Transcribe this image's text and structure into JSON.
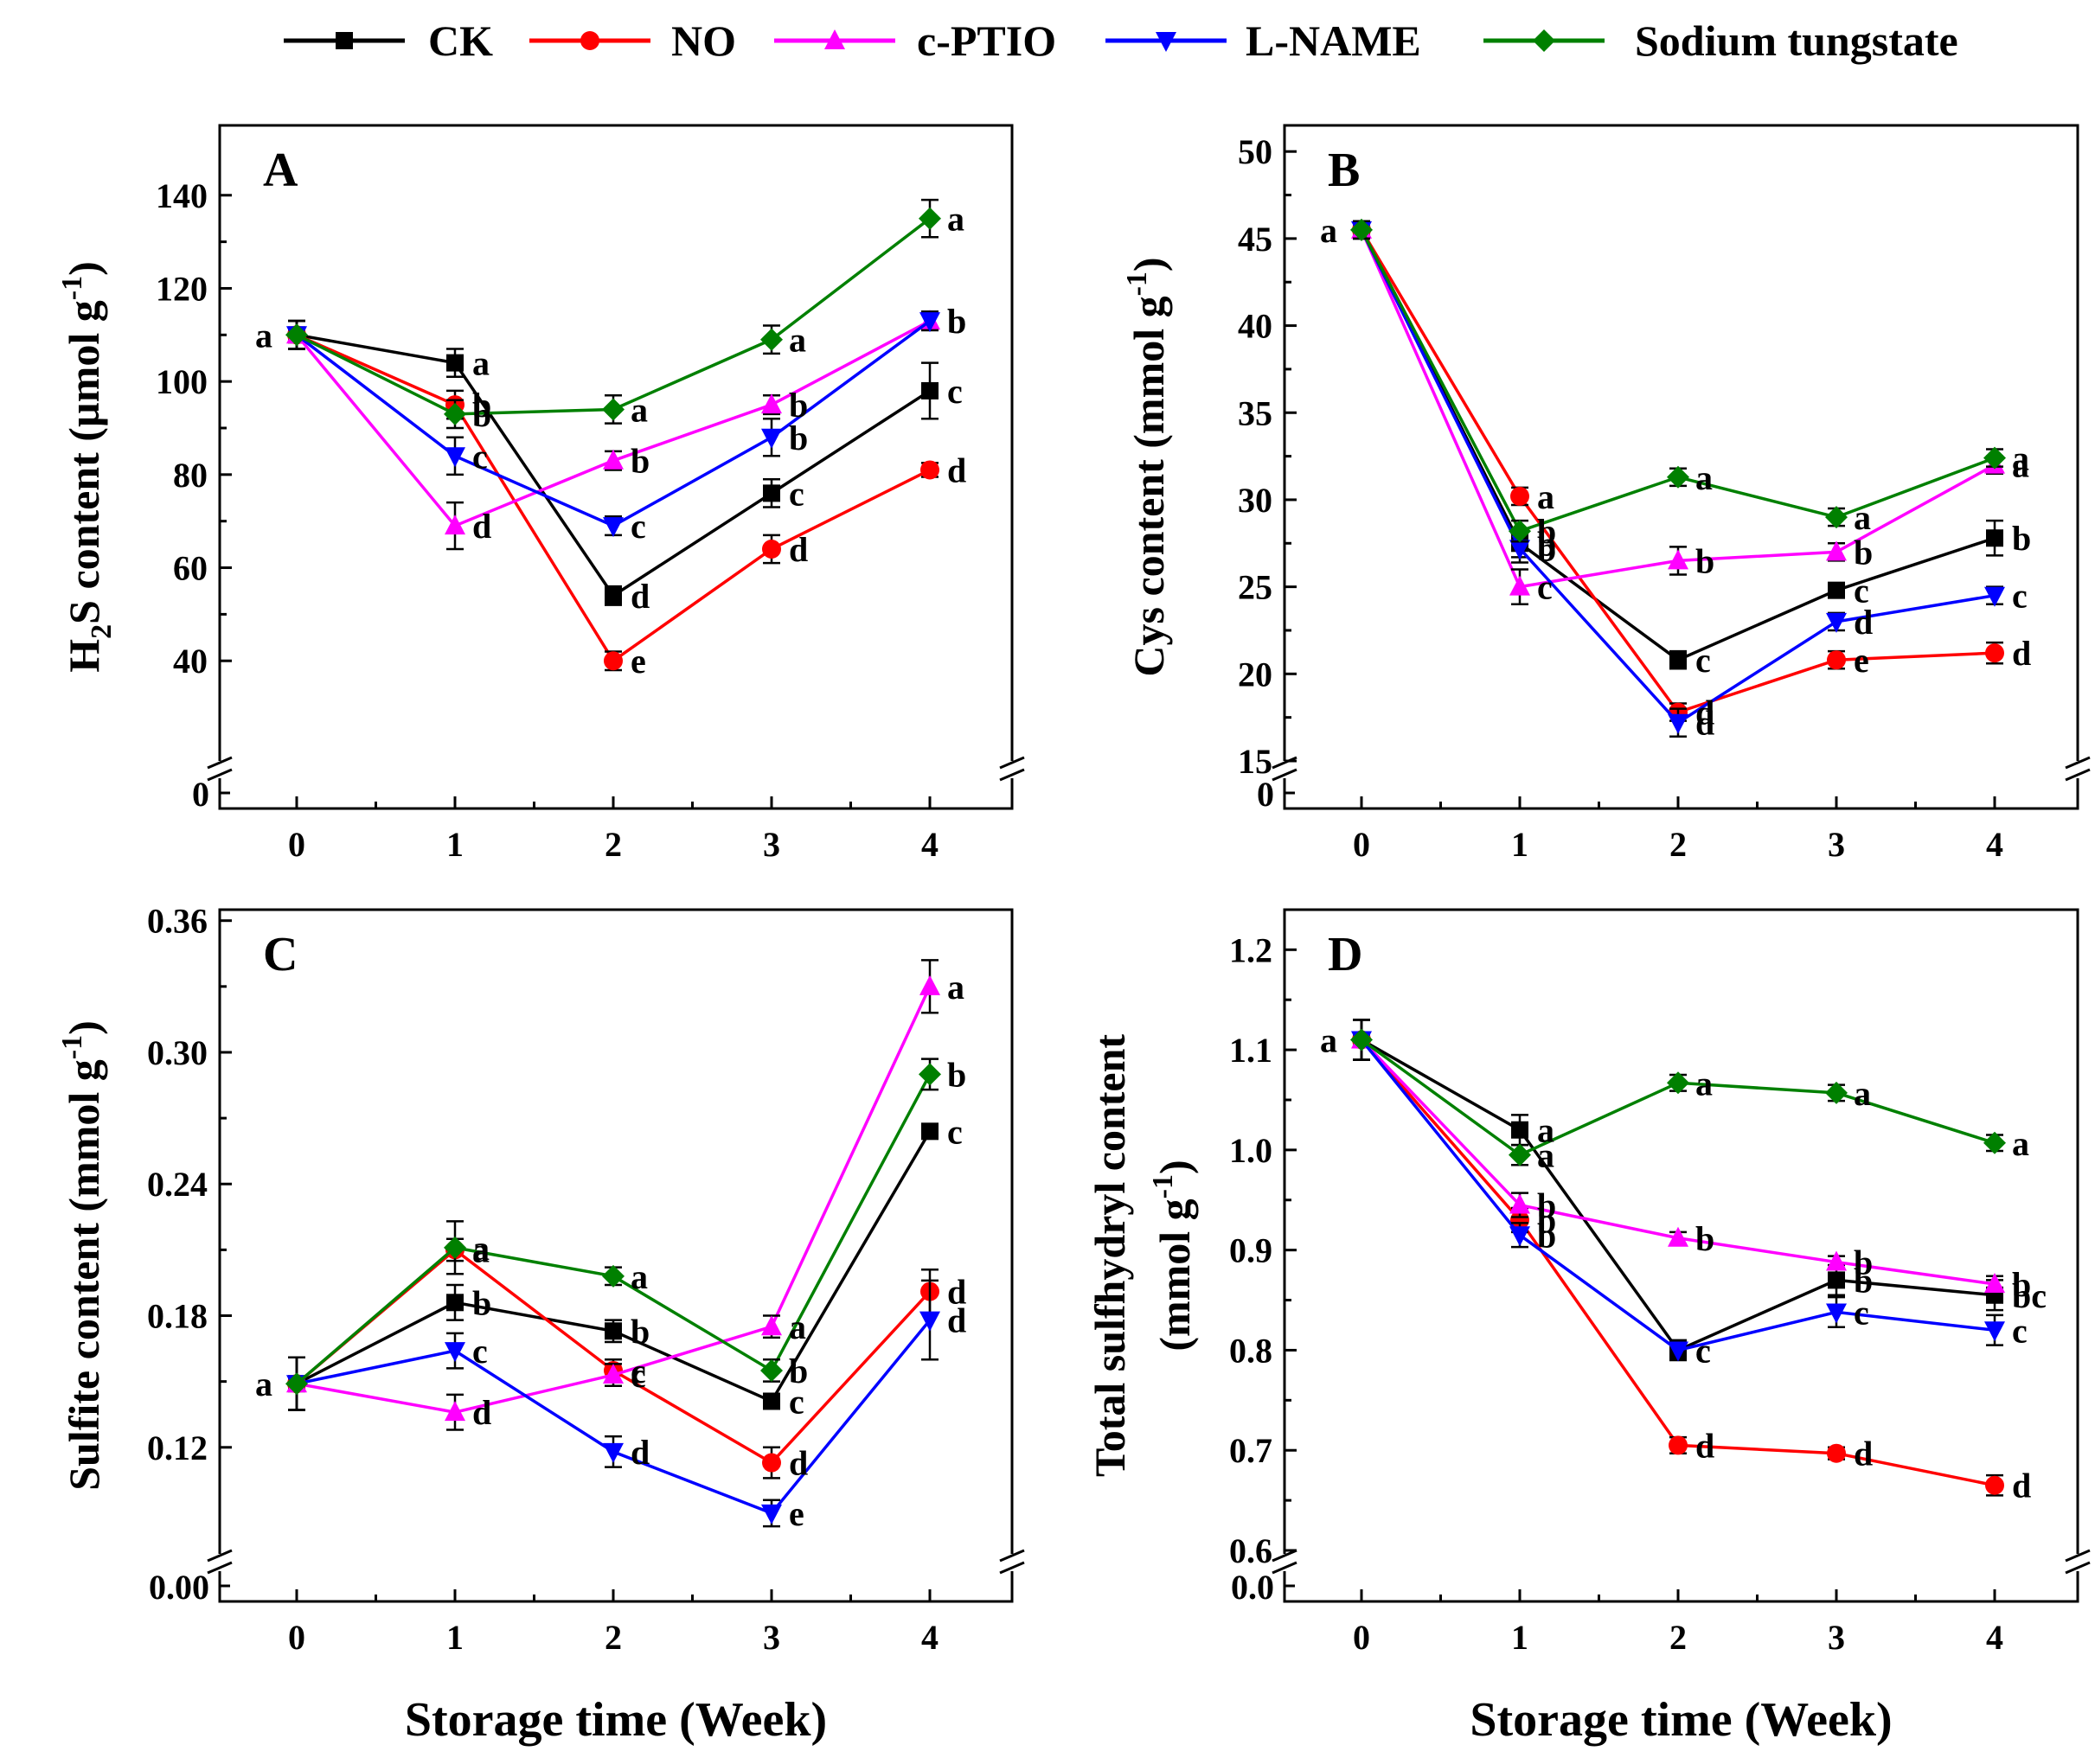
{
  "chart_data": [
    {
      "type": "line",
      "panel": "A",
      "ylabel": "H2S content (µmol g-1)",
      "ylabel_parts": {
        "pre": "H",
        "sub": "2",
        "mid": "S content  (µmol g",
        "sup": "-1",
        "post": ")"
      },
      "xlabel": "",
      "x": [
        0,
        1,
        2,
        3,
        4
      ],
      "xticks": [
        "0",
        "1",
        "2",
        "3",
        "4"
      ],
      "yticks": [
        40,
        60,
        80,
        100,
        120,
        140
      ],
      "ylim": [
        25,
        155
      ],
      "ybreak_label": "0",
      "series": [
        {
          "name": "CK",
          "values": [
            110,
            104,
            54,
            76,
            98
          ],
          "errors": [
            3,
            3,
            2,
            3,
            6
          ],
          "labels": [
            "a",
            "a",
            "d",
            "c",
            "c"
          ]
        },
        {
          "name": "NO",
          "values": [
            110,
            95,
            40,
            64,
            81
          ],
          "errors": [
            3,
            3,
            2,
            3,
            1.5
          ],
          "labels": [
            "",
            "b",
            "e",
            "d",
            "d"
          ]
        },
        {
          "name": "c-PTIO",
          "values": [
            110,
            69,
            83,
            95,
            113
          ],
          "errors": [
            3,
            5,
            2,
            2,
            2
          ],
          "labels": [
            "",
            "d",
            "b",
            "b",
            "b"
          ]
        },
        {
          "name": "L-NAME",
          "values": [
            110,
            84,
            69,
            88,
            113
          ],
          "errors": [
            3,
            4,
            2,
            4,
            2
          ],
          "labels": [
            "",
            "c",
            "c",
            "b",
            "b"
          ]
        },
        {
          "name": "Sodium tungstate",
          "values": [
            110,
            93,
            94,
            109,
            135
          ],
          "errors": [
            3,
            3,
            3,
            3,
            4
          ],
          "labels": [
            "",
            "b",
            "a",
            "a",
            "a"
          ]
        }
      ]
    },
    {
      "type": "line",
      "panel": "B",
      "ylabel": "Cys content (mmol g-1)",
      "ylabel_parts": {
        "pre": "Cys content  (mmol g",
        "sub": "",
        "mid": "",
        "sup": "-1",
        "post": ")"
      },
      "xlabel": "",
      "x": [
        0,
        1,
        2,
        3,
        4
      ],
      "xticks": [
        "0",
        "1",
        "2",
        "3",
        "4"
      ],
      "yticks": [
        15,
        20,
        25,
        30,
        35,
        40,
        45,
        50
      ],
      "ylim": [
        15,
        51.5
      ],
      "ybreak_label": "0",
      "series": [
        {
          "name": "CK",
          "values": [
            45.5,
            27.5,
            20.8,
            24.8,
            27.8
          ],
          "errors": [
            0.5,
            0.8,
            0.5,
            0.3,
            1.0
          ],
          "labels": [
            "a",
            "b",
            "c",
            "c",
            "b"
          ]
        },
        {
          "name": "NO",
          "values": [
            45.5,
            30.2,
            17.8,
            20.8,
            21.2
          ],
          "errors": [
            0.5,
            0.5,
            0.5,
            0.5,
            0.6
          ],
          "labels": [
            "",
            "a",
            "d",
            "e",
            "d"
          ]
        },
        {
          "name": "c-PTIO",
          "values": [
            45.5,
            25.0,
            26.5,
            27.0,
            32.0
          ],
          "errors": [
            0.5,
            1.0,
            0.8,
            0.5,
            0.5
          ],
          "labels": [
            "",
            "c",
            "b",
            "b",
            "a"
          ]
        },
        {
          "name": "L-NAME",
          "values": [
            45.5,
            27.2,
            17.2,
            23.0,
            24.5
          ],
          "errors": [
            0.5,
            0.8,
            0.8,
            0.5,
            0.5
          ],
          "labels": [
            "",
            "b",
            "d",
            "d",
            "c"
          ]
        },
        {
          "name": "Sodium tungstate",
          "values": [
            45.5,
            28.2,
            31.3,
            29.0,
            32.4
          ],
          "errors": [
            0.5,
            0.6,
            0.5,
            0.5,
            0.5
          ],
          "labels": [
            "",
            "b",
            "a",
            "a",
            "a"
          ]
        }
      ]
    },
    {
      "type": "line",
      "panel": "C",
      "ylabel": "Sulfite content (mmol g-1)",
      "ylabel_parts": {
        "pre": "Sulfite content  (mmol g",
        "sub": "",
        "mid": "",
        "sup": "-1",
        "post": ")"
      },
      "xlabel": "Storage time (Week)",
      "x": [
        0,
        1,
        2,
        3,
        4
      ],
      "xticks": [
        "0",
        "1",
        "2",
        "3",
        "4"
      ],
      "yticks": [
        0.12,
        0.18,
        0.24,
        0.3,
        0.36
      ],
      "ytick_labels": [
        "0.12",
        "0.18",
        "0.24",
        "0.30",
        "0.36"
      ],
      "ylim": [
        0.075,
        0.365
      ],
      "ybreak_label": "0.00",
      "series": [
        {
          "name": "CK",
          "values": [
            0.149,
            0.186,
            0.173,
            0.141,
            0.264
          ],
          "errors": [
            0.012,
            0.008,
            0.005,
            0.003,
            0.003
          ],
          "labels": [
            "a",
            "b",
            "b",
            "c",
            "c"
          ]
        },
        {
          "name": "NO",
          "values": [
            0.149,
            0.21,
            0.155,
            0.113,
            0.191
          ],
          "errors": [
            0.012,
            0.005,
            0.005,
            0.007,
            0.01
          ],
          "labels": [
            "",
            "a",
            "c",
            "d",
            "d"
          ]
        },
        {
          "name": "c-PTIO",
          "values": [
            0.149,
            0.136,
            0.153,
            0.175,
            0.33
          ],
          "errors": [
            0.012,
            0.008,
            0.005,
            0.005,
            0.012
          ],
          "labels": [
            "",
            "d",
            "c",
            "a",
            "a"
          ]
        },
        {
          "name": "L-NAME",
          "values": [
            0.149,
            0.164,
            0.118,
            0.09,
            0.178
          ],
          "errors": [
            0.012,
            0.008,
            0.007,
            0.006,
            0.018
          ],
          "labels": [
            "",
            "c",
            "d",
            "e",
            "d"
          ]
        },
        {
          "name": "Sodium tungstate",
          "values": [
            0.149,
            0.211,
            0.198,
            0.155,
            0.29
          ],
          "errors": [
            0.012,
            0.012,
            0.004,
            0.005,
            0.007
          ],
          "labels": [
            "",
            "a",
            "a",
            "b",
            "b"
          ]
        }
      ]
    },
    {
      "type": "line",
      "panel": "D",
      "ylabel": "Total sulfhydryl content (mmol g-1)",
      "ylabel_parts": {
        "pre": "Total sulfhydryl content",
        "sub": "",
        "mid": "",
        "sup": "",
        "post": ""
      },
      "ylabel_line2": {
        "pre": "(mmol g",
        "sup": "-1",
        "post": ")"
      },
      "xlabel": "Storage time (Week)",
      "x": [
        0,
        1,
        2,
        3,
        4
      ],
      "xticks": [
        "0",
        "1",
        "2",
        "3",
        "4"
      ],
      "yticks": [
        0.6,
        0.7,
        0.8,
        0.9,
        1.0,
        1.1,
        1.2
      ],
      "ytick_labels": [
        "0.6",
        "0.7",
        "0.8",
        "0.9",
        "1.0",
        "1.1",
        "1.2"
      ],
      "ylim": [
        0.6,
        1.24
      ],
      "ybreak_label": "0.0",
      "series": [
        {
          "name": "CK",
          "values": [
            1.11,
            1.02,
            0.8,
            0.87,
            0.855
          ],
          "errors": [
            0.02,
            0.015,
            0.008,
            0.015,
            0.015
          ],
          "labels": [
            "a",
            "a",
            "c",
            "b",
            "bc"
          ]
        },
        {
          "name": "NO",
          "values": [
            1.11,
            0.93,
            0.705,
            0.697,
            0.665
          ],
          "errors": [
            0.02,
            0.012,
            0.008,
            0.006,
            0.01
          ],
          "labels": [
            "",
            "b",
            "d",
            "d",
            "d"
          ]
        },
        {
          "name": "c-PTIO",
          "values": [
            1.11,
            0.945,
            0.912,
            0.888,
            0.866
          ],
          "errors": [
            0.02,
            0.012,
            0.006,
            0.006,
            0.008
          ],
          "labels": [
            "",
            "b",
            "b",
            "b",
            "b"
          ]
        },
        {
          "name": "L-NAME",
          "values": [
            1.11,
            0.915,
            0.8,
            0.838,
            0.82
          ],
          "errors": [
            0.02,
            0.012,
            0.01,
            0.015,
            0.015
          ],
          "labels": [
            "",
            "b",
            "c",
            "c",
            "c"
          ]
        },
        {
          "name": "Sodium tungstate",
          "values": [
            1.11,
            0.995,
            1.067,
            1.057,
            1.007
          ],
          "errors": [
            0.02,
            0.01,
            0.008,
            0.008,
            0.008
          ],
          "labels": [
            "",
            "a",
            "a",
            "a",
            "a"
          ]
        }
      ]
    }
  ],
  "legend": {
    "items": [
      {
        "name": "CK",
        "color": "#000000",
        "marker": "square"
      },
      {
        "name": "NO",
        "color": "#ff0000",
        "marker": "circle"
      },
      {
        "name": "c-PTIO",
        "color": "#ff00ff",
        "marker": "triangle-up"
      },
      {
        "name": "L-NAME",
        "color": "#0000ff",
        "marker": "triangle-down"
      },
      {
        "name": "Sodium tungstate",
        "color": "#008000",
        "marker": "diamond"
      }
    ]
  },
  "xlabel_shared": "Storage time (Week)"
}
